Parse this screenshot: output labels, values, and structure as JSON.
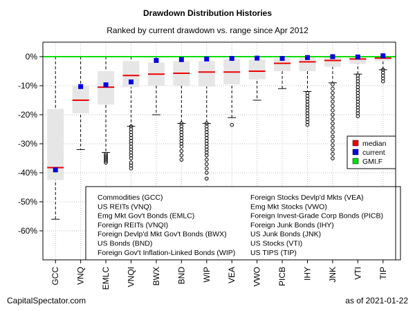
{
  "header": {
    "title": "Drawdown Distribution Histories",
    "subtitle": "Ranked by current drawdown vs. range since Apr 2012"
  },
  "footer": {
    "source": "CapitalSpectator.com",
    "as_of": "as of  2021-01-22"
  },
  "chart_data": {
    "type": "box",
    "ylim": [
      -70,
      5
    ],
    "yticks": [
      0,
      -10,
      -20,
      -30,
      -40,
      -50,
      -60
    ],
    "ytick_labels": [
      "0%",
      "-10%",
      "-20%",
      "-30%",
      "-40%",
      "-50%",
      "-60%"
    ],
    "grid": true,
    "reference_line": {
      "name": "GMI.F",
      "value": 0,
      "color": "#00dd00"
    },
    "colors": {
      "median": "#ee0000",
      "current": "#0000dd",
      "gmif": "#00dd00",
      "box_fill": "#e6e6e6",
      "outlier": "#000000"
    },
    "legend": {
      "placement": "right",
      "entries": [
        {
          "label": "median",
          "color": "#ee0000"
        },
        {
          "label": "current",
          "color": "#0000dd"
        },
        {
          "label": "GMI.F",
          "color": "#00dd00"
        }
      ]
    },
    "series": [
      {
        "ticker": "GCC",
        "min": -56,
        "q1": -42.5,
        "median": -38.2,
        "q3": -18.0,
        "max": 0,
        "current": -39.0,
        "outliers": []
      },
      {
        "ticker": "VNQ",
        "min": -32,
        "q1": -19.5,
        "median": -15.0,
        "q3": -10.0,
        "max": 0,
        "current": -10.3,
        "outliers": []
      },
      {
        "ticker": "EMLC",
        "min": -33,
        "q1": -16.5,
        "median": -10.5,
        "q3": -5.0,
        "max": 0,
        "current": -9.7,
        "outliers": [
          -33.5,
          -34.0,
          -34.5,
          -35.0,
          -35.5,
          -36.0,
          -36.5
        ]
      },
      {
        "ticker": "VNQI",
        "min": -24,
        "q1": -10.5,
        "median": -6.5,
        "q3": -1.5,
        "max": 0,
        "current": -8.7,
        "outliers": [
          -24,
          -25,
          -26,
          -27,
          -28,
          -29,
          -30,
          -31,
          -32,
          -33,
          -34,
          -35,
          -36.5,
          -37.5,
          -38.5
        ]
      },
      {
        "ticker": "BWX",
        "min": -20,
        "q1": -10.0,
        "median": -6.0,
        "q3": -2.0,
        "max": 0,
        "current": -1.3,
        "outliers": []
      },
      {
        "ticker": "BND",
        "min": -23,
        "q1": -10.0,
        "median": -5.7,
        "q3": -1.5,
        "max": 0,
        "current": -1.0,
        "outliers": [
          -23,
          -24,
          -25,
          -26,
          -27,
          -28,
          -29,
          -30,
          -31,
          -32.5,
          -34,
          -35.5
        ]
      },
      {
        "ticker": "WIP",
        "min": -23,
        "q1": -10.3,
        "median": -5.3,
        "q3": -1.5,
        "max": 0,
        "current": -0.8,
        "outliers": [
          -23,
          -24,
          -25,
          -26,
          -27,
          -28,
          -29,
          -30,
          -31,
          -32,
          -33,
          -34,
          -35.5,
          -37,
          -38.5,
          -40,
          -42
        ]
      },
      {
        "ticker": "VEA",
        "min": -21,
        "q1": -9.5,
        "median": -5.3,
        "q3": -0.8,
        "max": 0,
        "current": -0.6,
        "outliers": [
          -23.5
        ]
      },
      {
        "ticker": "VWO",
        "min": -15,
        "q1": -7.8,
        "median": -5.0,
        "q3": -1.0,
        "max": 0,
        "current": -0.5,
        "outliers": []
      },
      {
        "ticker": "PICB",
        "min": -11,
        "q1": -5.0,
        "median": -2.3,
        "q3": -0.5,
        "max": 0,
        "current": -0.6,
        "outliers": []
      },
      {
        "ticker": "IHY",
        "min": -12,
        "q1": -5.0,
        "median": -1.8,
        "q3": -0.3,
        "max": 0,
        "current": -0.3,
        "outliers": [
          -12.5,
          -13.5,
          -14.5,
          -15.5,
          -16.5,
          -17.5,
          -18.5,
          -19.5,
          -20.5,
          -21.5,
          -22.5,
          -23.5
        ]
      },
      {
        "ticker": "JNK",
        "min": -9,
        "q1": -3.5,
        "median": -1.3,
        "q3": -0.2,
        "max": 0,
        "current": 0.0,
        "outliers": [
          -9.5,
          -11,
          -12.5,
          -14,
          -15.5,
          -17,
          -18.5,
          -20,
          -21.5,
          -23,
          -24.5,
          -26,
          -27.5,
          -29,
          -30.5,
          -32,
          -33.5,
          -35
        ]
      },
      {
        "ticker": "VTI",
        "min": -6,
        "q1": -2.5,
        "median": -0.8,
        "q3": 0.0,
        "max": 0,
        "current": -0.1,
        "outliers": [
          -6.5,
          -7.5,
          -8.5,
          -9.5,
          -10.5,
          -11.5,
          -12.5,
          -13.5,
          -14.5,
          -15.5,
          -16.5,
          -17.5,
          -18.5,
          -19.5,
          -20.5
        ]
      },
      {
        "ticker": "TIP",
        "min": -4.5,
        "q1": -1.5,
        "median": -0.5,
        "q3": 0.0,
        "max": 0,
        "current": 0.3,
        "outliers": [
          -4.5,
          -5.5,
          -6.5,
          -7.5,
          -8.5
        ]
      }
    ],
    "key": [
      "Commodities (GCC)",
      "US REITs (VNQ)",
      "Emg Mkt Gov't Bonds (EMLC)",
      "Foreign REITs (VNQI)",
      "Foreign Devlp'd Mkt Gov't Bonds (BWX)",
      "US Bonds (BND)",
      "Foreign Gov't Inflation-Linked Bonds (WIP)",
      "Foreign Stocks Devlp'd Mkts (VEA)",
      "Emg Mkt Stocks (VWO)",
      "Foreign Invest-Grade Corp Bonds (PICB)",
      "Foreign Junk Bonds (IHY)",
      "US Junk Bonds (JNK)",
      "US Stocks (VTI)",
      "US TIPS (TIP)"
    ]
  }
}
